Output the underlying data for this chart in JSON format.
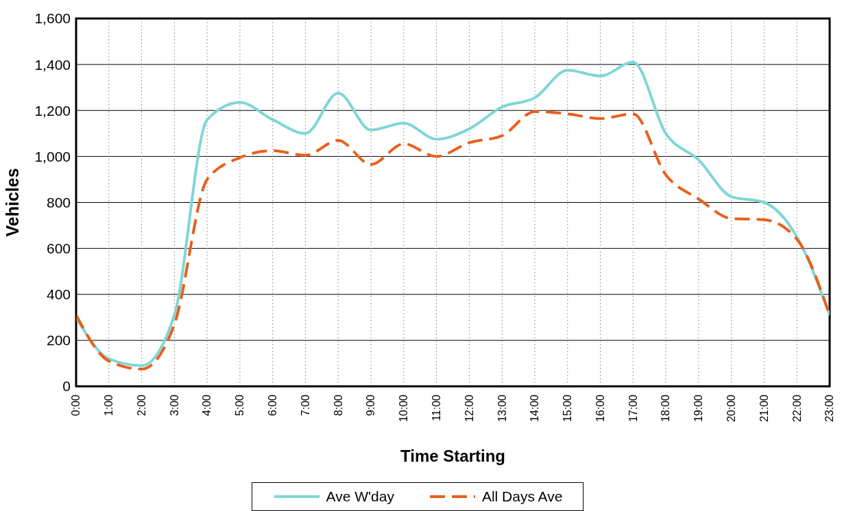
{
  "chart_data": {
    "type": "line",
    "xlabel": "Time Starting",
    "ylabel": "Vehicles",
    "categories": [
      "0:00",
      "1:00",
      "2:00",
      "3:00",
      "4:00",
      "5:00",
      "6:00",
      "7:00",
      "8:00",
      "9:00",
      "10:00",
      "11:00",
      "12:00",
      "13:00",
      "14:00",
      "15:00",
      "16:00",
      "17:00",
      "18:00",
      "19:00",
      "20:00",
      "21:00",
      "22:00",
      "23:00"
    ],
    "series": [
      {
        "name": "Ave W'day",
        "color": "#7fd6d6",
        "line_style": "solid",
        "values": [
          300,
          120,
          90,
          310,
          1160,
          1235,
          1160,
          1100,
          1275,
          1115,
          1145,
          1075,
          1120,
          1215,
          1255,
          1375,
          1350,
          1410,
          1100,
          985,
          825,
          800,
          650,
          310
        ]
      },
      {
        "name": "All Days Ave",
        "color": "#e8601c",
        "line_style": "dashed",
        "values": [
          310,
          110,
          75,
          270,
          900,
          995,
          1025,
          1005,
          1070,
          965,
          1055,
          1000,
          1060,
          1090,
          1195,
          1185,
          1165,
          1185,
          920,
          815,
          730,
          725,
          640,
          310
        ]
      }
    ],
    "ylim": [
      0,
      1600
    ],
    "yticks": [
      0,
      200,
      400,
      600,
      800,
      {
        "value": 1000,
        "label": "1,000"
      },
      {
        "value": 1200,
        "label": "1,200"
      },
      {
        "value": 1400,
        "label": "1,400"
      },
      {
        "value": 1600,
        "label": "1,600"
      }
    ],
    "grid": true,
    "legend": "bottom",
    "marker": "none"
  }
}
